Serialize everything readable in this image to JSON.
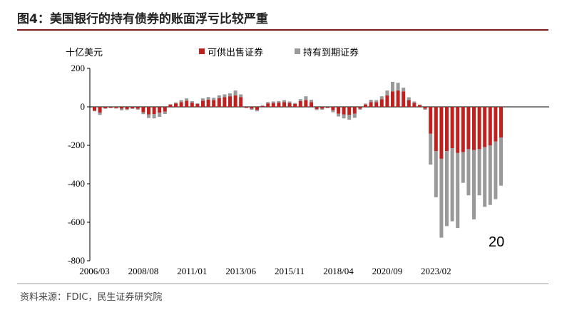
{
  "title": "图4：美国银行的持有债券的账面浮亏比较严重",
  "source": "资料来源：FDIC，民生证券研究院",
  "colors": {
    "afs": "#c0201e",
    "htm": "#999999",
    "title_rule": "#7b1c1c"
  },
  "chart_data": {
    "type": "bar",
    "stacked": true,
    "y_unit": "十亿美元",
    "ylim": [
      -800,
      200
    ],
    "yticks": [
      200,
      0,
      -200,
      -400,
      -600,
      -800
    ],
    "xtick_labels": [
      "2006/03",
      "2008/08",
      "2011/01",
      "2013/06",
      "2015/11",
      "2018/04",
      "2020/09",
      "2023/02"
    ],
    "xtick_indices": [
      0,
      9,
      18,
      27,
      36,
      45,
      54,
      63
    ],
    "legend_position": "top",
    "annotation": "20",
    "series": [
      {
        "name": "可供出售证券",
        "values": [
          -20,
          -30,
          -8,
          -5,
          -6,
          -10,
          -12,
          -8,
          -10,
          -28,
          -40,
          -38,
          -30,
          -25,
          12,
          18,
          25,
          32,
          22,
          15,
          32,
          38,
          35,
          45,
          50,
          55,
          60,
          50,
          -5,
          -10,
          -15,
          5,
          18,
          20,
          22,
          25,
          20,
          15,
          30,
          35,
          25,
          -12,
          -10,
          -5,
          -18,
          -35,
          -40,
          -42,
          -35,
          -10,
          12,
          25,
          25,
          40,
          60,
          80,
          85,
          80,
          35,
          20,
          10,
          -10,
          -140,
          -230,
          -270,
          -230,
          -215,
          -240,
          -235,
          -220,
          -225,
          -220,
          -210,
          -200,
          -180,
          -160
        ]
      },
      {
        "name": "持有到期证券",
        "values": [
          -3,
          -12,
          -2,
          -2,
          -3,
          -8,
          -5,
          -3,
          -5,
          -10,
          -18,
          -22,
          -22,
          -12,
          2,
          5,
          10,
          12,
          8,
          4,
          12,
          13,
          12,
          15,
          15,
          15,
          25,
          15,
          -2,
          -5,
          -8,
          2,
          7,
          8,
          8,
          10,
          8,
          5,
          10,
          20,
          12,
          -5,
          -5,
          -2,
          -10,
          -15,
          -20,
          -25,
          -22,
          -5,
          5,
          12,
          10,
          15,
          25,
          50,
          40,
          20,
          15,
          8,
          2,
          -5,
          -160,
          -240,
          -410,
          -390,
          -380,
          -390,
          -160,
          -240,
          -360,
          -240,
          -310,
          -310,
          -300,
          -250
        ]
      }
    ]
  }
}
